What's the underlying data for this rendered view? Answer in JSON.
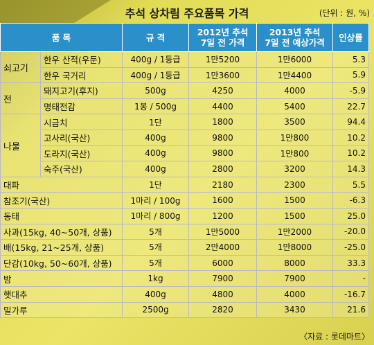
{
  "title": "추석 상차림 주요품목 가격",
  "unit": "(단위 : 원, %)",
  "source": "〈자료 : 롯데마트〉",
  "headers": {
    "item": "품    목",
    "spec": "규  격",
    "p2012_line1": "2012년 추석",
    "p2012_line2": "7일 전 가격",
    "p2013_line1": "2013년 추석",
    "p2013_line2": "7일 전 예상가격",
    "rate": "인상률"
  },
  "groups": {
    "beef": "쇠고기",
    "jeon": "전",
    "namul": "나물"
  },
  "rows": [
    {
      "item": "한우 산적(우둔)",
      "spec": "400g / 1등급",
      "p2012": "1만5200",
      "p2013": "1만6000",
      "rate": "5.3"
    },
    {
      "item": "한우 국거리",
      "spec": "400g / 1등급",
      "p2012": "1만3600",
      "p2013": "1만4400",
      "rate": "5.9"
    },
    {
      "item": "돼지고기(후지)",
      "spec": "500g",
      "p2012": "4250",
      "p2013": "4000",
      "rate": "-5.9"
    },
    {
      "item": "명태전감",
      "spec": "1봉 / 500g",
      "p2012": "4400",
      "p2013": "5400",
      "rate": "22.7"
    },
    {
      "item": "시금치",
      "spec": "1단",
      "p2012": "1800",
      "p2013": "3500",
      "rate": "94.4"
    },
    {
      "item": "고사리(국산)",
      "spec": "400g",
      "p2012": "9800",
      "p2013": "1만800",
      "rate": "10.2"
    },
    {
      "item": "도라지(국산)",
      "spec": "400g",
      "p2012": "9800",
      "p2013": "1만800",
      "rate": "10.2"
    },
    {
      "item": "숙주(국산)",
      "spec": "400g",
      "p2012": "2800",
      "p2013": "3200",
      "rate": "14.3"
    },
    {
      "item": "대파",
      "spec": "1단",
      "p2012": "2180",
      "p2013": "2300",
      "rate": "5.5"
    },
    {
      "item": "참조기(국산)",
      "spec": "1마리 / 100g",
      "p2012": "1600",
      "p2013": "1500",
      "rate": "-6.3"
    },
    {
      "item": "동태",
      "spec": "1마리 / 800g",
      "p2012": "1200",
      "p2013": "1500",
      "rate": "25.0"
    },
    {
      "item": "사과(15kg, 40~50개, 상품)",
      "spec": "5개",
      "p2012": "1만5000",
      "p2013": "1만2000",
      "rate": "-20.0"
    },
    {
      "item": "배(15kg, 21~25개, 상품)",
      "spec": "5개",
      "p2012": "2만4000",
      "p2013": "1만8000",
      "rate": "-25.0"
    },
    {
      "item": "단감(10kg, 50~60개, 상품)",
      "spec": "5개",
      "p2012": "6000",
      "p2013": "8000",
      "rate": "33.3"
    },
    {
      "item": "밤",
      "spec": "1kg",
      "p2012": "7900",
      "p2013": "7900",
      "rate": "-"
    },
    {
      "item": "햇대추",
      "spec": "400g",
      "p2012": "4800",
      "p2013": "4000",
      "rate": "-16.7"
    },
    {
      "item": "밀가루",
      "spec": "2500g",
      "p2012": "2820",
      "p2013": "3430",
      "rate": "21.6"
    }
  ]
}
